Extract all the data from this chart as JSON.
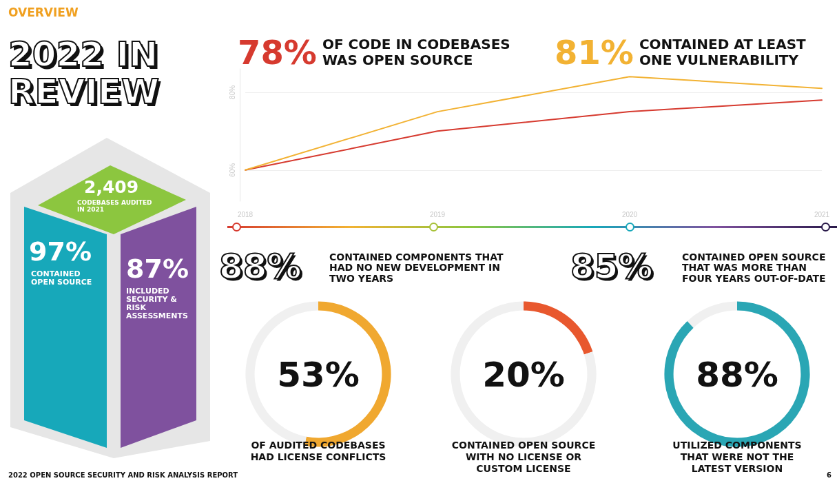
{
  "chart_data": [
    {
      "type": "other",
      "title": "OVERVIEW",
      "subtitle": "2022 IN REVIEW",
      "annotations": [
        "2,409",
        "CODEBASES AUDITED IN 2021",
        "97%",
        "CONTAINED OPEN SOURCE",
        "87%",
        "INCLUDED SECURITY & RISK ASSESSMENTS",
        "88%",
        "CONTAINED COMPONENTS THAT HAD NO NEW DEVELOPMENT IN TWO YEARS",
        "85%",
        "CONTAINED OPEN SOURCE THAT WAS MORE THAN FOUR YEARS OUT-OF-DATE",
        "2022 OPEN SOURCE SECURITY AND RISK ANALYSIS REPORT",
        "6"
      ]
    },
    {
      "type": "line",
      "categories": [
        "2018",
        "2019",
        "2020",
        "2021"
      ],
      "ylim": [
        52,
        86
      ],
      "yticks": [
        {
          "value": 60,
          "label": "60%"
        },
        {
          "value": 80,
          "label": "80%"
        }
      ],
      "grid": "y",
      "legend": "top",
      "series": [
        {
          "name": "78% OF CODE IN CODEBASES WAS OPEN SOURCE",
          "color": "#d63a2f",
          "values": [
            60,
            70,
            75,
            78
          ]
        },
        {
          "name": "81% CONTAINED AT LEAST ONE VULNERABILITY",
          "color": "#f2b233",
          "values": [
            60,
            75,
            84,
            81
          ]
        }
      ]
    },
    {
      "type": "donut",
      "categories": [
        null,
        null
      ],
      "values": [
        53,
        47
      ],
      "colors": [
        "#f0a830",
        "#f0f0f0"
      ],
      "value_labels": [
        "53%",
        null
      ],
      "annotations": [
        "OF AUDITED CODEBASES HAD LICENSE CONFLICTS"
      ]
    },
    {
      "type": "donut",
      "categories": [
        null,
        null
      ],
      "values": [
        20,
        80
      ],
      "colors": [
        "#e8582e",
        "#f0f0f0"
      ],
      "value_labels": [
        "20%",
        null
      ],
      "annotations": [
        "CONTAINED OPEN SOURCE WITH NO LICENSE OR CUSTOM LICENSE"
      ]
    },
    {
      "type": "donut",
      "categories": [
        null,
        null
      ],
      "values": [
        88,
        12
      ],
      "colors": [
        "#2aa6b4",
        "#f0f0f0"
      ],
      "value_labels": [
        "88%",
        null
      ],
      "annotations": [
        "UTILIZED COMPONENTS THAT WERE NOT THE LATEST VERSION"
      ]
    }
  ]
}
